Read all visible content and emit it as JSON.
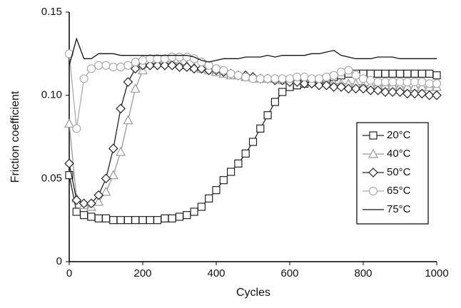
{
  "chart_data": {
    "type": "line",
    "xlabel": "Cycles",
    "ylabel": "Friction coefficient",
    "xlim": [
      0,
      1000
    ],
    "xticks": [
      0,
      200,
      400,
      600,
      800,
      1000
    ],
    "ylim": [
      0,
      0.15
    ],
    "yticks": [
      0,
      0.05,
      {
        "value": 0.1,
        "label": "0.10"
      },
      0.15
    ],
    "legend": "right",
    "x": [
      0,
      20,
      40,
      60,
      80,
      100,
      120,
      140,
      160,
      180,
      200,
      220,
      240,
      260,
      280,
      300,
      320,
      340,
      360,
      380,
      400,
      420,
      440,
      460,
      480,
      500,
      520,
      540,
      560,
      580,
      600,
      620,
      640,
      660,
      680,
      700,
      720,
      740,
      760,
      780,
      800,
      820,
      840,
      860,
      880,
      900,
      920,
      940,
      960,
      980,
      1000
    ],
    "series": [
      {
        "name": "20°C",
        "color": "#222222",
        "marker": "square",
        "values": [
          0.052,
          0.03,
          0.028,
          0.027,
          0.026,
          0.026,
          0.025,
          0.025,
          0.025,
          0.025,
          0.025,
          0.025,
          0.025,
          0.026,
          0.026,
          0.027,
          0.028,
          0.03,
          0.033,
          0.038,
          0.043,
          0.049,
          0.054,
          0.059,
          0.065,
          0.072,
          0.08,
          0.088,
          0.096,
          0.102,
          0.105,
          0.106,
          0.107,
          0.108,
          0.109,
          0.11,
          0.111,
          0.112,
          0.113,
          0.113,
          0.113,
          0.113,
          0.113,
          0.113,
          0.113,
          0.113,
          0.113,
          0.113,
          0.113,
          0.113,
          0.112
        ]
      },
      {
        "name": "40°C",
        "color": "#999999",
        "marker": "triangle",
        "values": [
          0.083,
          0.038,
          0.034,
          0.033,
          0.036,
          0.042,
          0.052,
          0.066,
          0.085,
          0.104,
          0.115,
          0.119,
          0.12,
          0.12,
          0.12,
          0.119,
          0.118,
          0.117,
          0.116,
          0.115,
          0.114,
          0.113,
          0.112,
          0.112,
          0.111,
          0.111,
          0.11,
          0.11,
          0.11,
          0.109,
          0.109,
          0.109,
          0.108,
          0.108,
          0.108,
          0.108,
          0.107,
          0.107,
          0.107,
          0.107,
          0.106,
          0.106,
          0.106,
          0.106,
          0.106,
          0.105,
          0.105,
          0.105,
          0.105,
          0.105,
          0.105
        ]
      },
      {
        "name": "50°C",
        "color": "#222222",
        "marker": "diamond",
        "values": [
          0.059,
          0.037,
          0.035,
          0.035,
          0.04,
          0.05,
          0.068,
          0.092,
          0.108,
          0.116,
          0.118,
          0.118,
          0.118,
          0.118,
          0.118,
          0.117,
          0.117,
          0.116,
          0.116,
          0.115,
          0.115,
          0.114,
          0.113,
          0.112,
          0.112,
          0.111,
          0.11,
          0.11,
          0.109,
          0.109,
          0.108,
          0.108,
          0.107,
          0.107,
          0.106,
          0.106,
          0.105,
          0.105,
          0.104,
          0.104,
          0.104,
          0.103,
          0.103,
          0.102,
          0.102,
          0.102,
          0.101,
          0.101,
          0.101,
          0.1,
          0.1
        ]
      },
      {
        "name": "65°C",
        "color": "#aaaaaa",
        "marker": "circle",
        "values": [
          0.125,
          0.08,
          0.11,
          0.116,
          0.118,
          0.118,
          0.117,
          0.117,
          0.118,
          0.12,
          0.121,
          0.122,
          0.122,
          0.122,
          0.123,
          0.123,
          0.123,
          0.122,
          0.12,
          0.118,
          0.116,
          0.115,
          0.113,
          0.112,
          0.111,
          0.11,
          0.11,
          0.11,
          0.11,
          0.11,
          0.11,
          0.111,
          0.111,
          0.11,
          0.11,
          0.111,
          0.112,
          0.114,
          0.115,
          0.112,
          0.11,
          0.109,
          0.108,
          0.108,
          0.108,
          0.108,
          0.108,
          0.108,
          0.108,
          0.107,
          0.107
        ]
      },
      {
        "name": "75°C",
        "color": "#111111",
        "marker": "none",
        "values": [
          0.118,
          0.134,
          0.122,
          0.122,
          0.125,
          0.125,
          0.125,
          0.124,
          0.124,
          0.124,
          0.124,
          0.124,
          0.124,
          0.124,
          0.124,
          0.124,
          0.124,
          0.123,
          0.121,
          0.12,
          0.121,
          0.122,
          0.122,
          0.122,
          0.123,
          0.123,
          0.123,
          0.124,
          0.123,
          0.124,
          0.124,
          0.124,
          0.124,
          0.125,
          0.125,
          0.126,
          0.127,
          0.124,
          0.123,
          0.122,
          0.122,
          0.122,
          0.123,
          0.123,
          0.123,
          0.122,
          0.122,
          0.122,
          0.122,
          0.122,
          0.122
        ]
      }
    ]
  }
}
